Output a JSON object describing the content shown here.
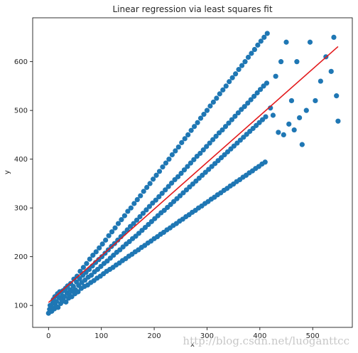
{
  "chart_data": {
    "type": "scatter",
    "title": "Linear regression via least squares fit",
    "xlabel": "x",
    "ylabel": "y",
    "xlim": [
      -30,
      575
    ],
    "ylim": [
      55,
      690
    ],
    "xticks": [
      0,
      100,
      200,
      300,
      400,
      500
    ],
    "yticks": [
      100,
      200,
      300,
      400,
      500,
      600
    ],
    "grid": false,
    "colors": {
      "points": "#1f77b4",
      "fit": "#e31a1c"
    },
    "fit_line": {
      "x": [
        0,
        548
      ],
      "y": [
        106,
        631
      ]
    },
    "series": [
      {
        "type": "scatter",
        "points": [
          [
            0,
            84
          ],
          [
            2,
            92
          ],
          [
            3,
            100
          ],
          [
            5,
            97
          ],
          [
            6,
            88
          ],
          [
            8,
            105
          ],
          [
            9,
            112
          ],
          [
            11,
            93
          ],
          [
            12,
            118
          ],
          [
            14,
            99
          ],
          [
            15,
            108
          ],
          [
            17,
            124
          ],
          [
            18,
            96
          ],
          [
            20,
            116
          ],
          [
            21,
            128
          ],
          [
            23,
            104
          ],
          [
            24,
            113
          ],
          [
            26,
            120
          ],
          [
            27,
            130
          ],
          [
            29,
            109
          ],
          [
            30,
            118
          ],
          [
            32,
            135
          ],
          [
            33,
            107
          ],
          [
            35,
            126
          ],
          [
            36,
            140
          ],
          [
            38,
            115
          ],
          [
            39,
            122
          ],
          [
            41,
            132
          ],
          [
            42,
            145
          ],
          [
            44,
            118
          ],
          [
            45,
            129
          ],
          [
            47,
            139
          ],
          [
            48,
            154
          ],
          [
            50,
            124
          ],
          [
            51,
            132
          ],
          [
            53,
            148
          ],
          [
            54,
            160
          ],
          [
            56,
            128
          ],
          [
            57,
            141
          ],
          [
            59,
            155
          ],
          [
            60,
            170
          ],
          [
            62,
            135
          ],
          [
            63,
            147
          ],
          [
            65,
            162
          ],
          [
            66,
            178
          ],
          [
            68,
            139
          ],
          [
            69,
            152
          ],
          [
            71,
            168
          ],
          [
            72,
            186
          ],
          [
            74,
            142
          ],
          [
            75,
            158
          ],
          [
            77,
            174
          ],
          [
            78,
            195
          ],
          [
            80,
            147
          ],
          [
            81,
            162
          ],
          [
            83,
            181
          ],
          [
            84,
            203
          ],
          [
            86,
            151
          ],
          [
            87,
            169
          ],
          [
            89,
            188
          ],
          [
            90,
            210
          ],
          [
            92,
            156
          ],
          [
            93,
            174
          ],
          [
            95,
            194
          ],
          [
            96,
            218
          ],
          [
            98,
            160
          ],
          [
            99,
            180
          ],
          [
            101,
            200
          ],
          [
            102,
            226
          ],
          [
            104,
            165
          ],
          [
            105,
            186
          ],
          [
            107,
            207
          ],
          [
            108,
            234
          ],
          [
            110,
            170
          ],
          [
            111,
            191
          ],
          [
            113,
            214
          ],
          [
            114,
            243
          ],
          [
            116,
            174
          ],
          [
            117,
            197
          ],
          [
            119,
            221
          ],
          [
            120,
            251
          ],
          [
            122,
            178
          ],
          [
            123,
            203
          ],
          [
            125,
            227
          ],
          [
            126,
            259
          ],
          [
            128,
            183
          ],
          [
            129,
            209
          ],
          [
            131,
            234
          ],
          [
            132,
            268
          ],
          [
            134,
            187
          ],
          [
            135,
            214
          ],
          [
            137,
            241
          ],
          [
            138,
            276
          ],
          [
            140,
            192
          ],
          [
            141,
            220
          ],
          [
            143,
            248
          ],
          [
            144,
            284
          ],
          [
            146,
            196
          ],
          [
            147,
            226
          ],
          [
            149,
            255
          ],
          [
            150,
            293
          ],
          [
            152,
            201
          ],
          [
            153,
            231
          ],
          [
            155,
            262
          ],
          [
            156,
            300
          ],
          [
            158,
            205
          ],
          [
            159,
            237
          ],
          [
            161,
            268
          ],
          [
            162,
            309
          ],
          [
            164,
            210
          ],
          [
            165,
            242
          ],
          [
            167,
            275
          ],
          [
            168,
            317
          ],
          [
            170,
            214
          ],
          [
            171,
            248
          ],
          [
            173,
            282
          ],
          [
            174,
            325
          ],
          [
            176,
            219
          ],
          [
            177,
            254
          ],
          [
            179,
            289
          ],
          [
            180,
            334
          ],
          [
            182,
            223
          ],
          [
            183,
            260
          ],
          [
            185,
            296
          ],
          [
            186,
            342
          ],
          [
            188,
            228
          ],
          [
            189,
            266
          ],
          [
            191,
            303
          ],
          [
            192,
            350
          ],
          [
            194,
            232
          ],
          [
            195,
            272
          ],
          [
            197,
            310
          ],
          [
            198,
            359
          ],
          [
            200,
            237
          ],
          [
            201,
            278
          ],
          [
            203,
            316
          ],
          [
            204,
            367
          ],
          [
            206,
            241
          ],
          [
            207,
            284
          ],
          [
            209,
            323
          ],
          [
            210,
            375
          ],
          [
            212,
            246
          ],
          [
            213,
            290
          ],
          [
            215,
            330
          ],
          [
            216,
            384
          ],
          [
            218,
            250
          ],
          [
            219,
            295
          ],
          [
            221,
            337
          ],
          [
            222,
            392
          ],
          [
            224,
            255
          ],
          [
            225,
            301
          ],
          [
            227,
            344
          ],
          [
            228,
            400
          ],
          [
            230,
            259
          ],
          [
            231,
            307
          ],
          [
            233,
            351
          ],
          [
            234,
            409
          ],
          [
            236,
            264
          ],
          [
            237,
            313
          ],
          [
            239,
            358
          ],
          [
            240,
            417
          ],
          [
            242,
            268
          ],
          [
            243,
            319
          ],
          [
            245,
            364
          ],
          [
            246,
            425
          ],
          [
            248,
            273
          ],
          [
            249,
            325
          ],
          [
            251,
            371
          ],
          [
            252,
            434
          ],
          [
            254,
            277
          ],
          [
            255,
            331
          ],
          [
            257,
            378
          ],
          [
            258,
            442
          ],
          [
            260,
            282
          ],
          [
            261,
            337
          ],
          [
            263,
            385
          ],
          [
            264,
            450
          ],
          [
            266,
            286
          ],
          [
            267,
            343
          ],
          [
            269,
            392
          ],
          [
            270,
            459
          ],
          [
            272,
            291
          ],
          [
            273,
            349
          ],
          [
            275,
            399
          ],
          [
            276,
            467
          ],
          [
            278,
            295
          ],
          [
            279,
            355
          ],
          [
            281,
            406
          ],
          [
            282,
            475
          ],
          [
            284,
            300
          ],
          [
            285,
            361
          ],
          [
            287,
            412
          ],
          [
            288,
            484
          ],
          [
            290,
            304
          ],
          [
            291,
            367
          ],
          [
            293,
            419
          ],
          [
            294,
            492
          ],
          [
            296,
            309
          ],
          [
            297,
            373
          ],
          [
            299,
            426
          ],
          [
            300,
            500
          ],
          [
            302,
            313
          ],
          [
            303,
            379
          ],
          [
            305,
            433
          ],
          [
            306,
            509
          ],
          [
            308,
            318
          ],
          [
            309,
            385
          ],
          [
            311,
            440
          ],
          [
            312,
            517
          ],
          [
            314,
            322
          ],
          [
            315,
            391
          ],
          [
            317,
            447
          ],
          [
            318,
            525
          ],
          [
            320,
            327
          ],
          [
            321,
            397
          ],
          [
            323,
            454
          ],
          [
            324,
            534
          ],
          [
            326,
            331
          ],
          [
            327,
            403
          ],
          [
            329,
            460
          ],
          [
            330,
            542
          ],
          [
            332,
            336
          ],
          [
            333,
            409
          ],
          [
            335,
            467
          ],
          [
            336,
            550
          ],
          [
            338,
            340
          ],
          [
            339,
            415
          ],
          [
            341,
            474
          ],
          [
            342,
            559
          ],
          [
            344,
            345
          ],
          [
            345,
            421
          ],
          [
            347,
            481
          ],
          [
            348,
            567
          ],
          [
            350,
            349
          ],
          [
            351,
            427
          ],
          [
            353,
            488
          ],
          [
            354,
            575
          ],
          [
            356,
            354
          ],
          [
            357,
            433
          ],
          [
            359,
            495
          ],
          [
            360,
            584
          ],
          [
            362,
            358
          ],
          [
            363,
            439
          ],
          [
            365,
            502
          ],
          [
            366,
            592
          ],
          [
            368,
            363
          ],
          [
            369,
            445
          ],
          [
            371,
            508
          ],
          [
            372,
            600
          ],
          [
            374,
            367
          ],
          [
            375,
            451
          ],
          [
            377,
            515
          ],
          [
            378,
            609
          ],
          [
            380,
            372
          ],
          [
            381,
            457
          ],
          [
            383,
            522
          ],
          [
            384,
            617
          ],
          [
            386,
            376
          ],
          [
            387,
            463
          ],
          [
            389,
            529
          ],
          [
            390,
            625
          ],
          [
            392,
            381
          ],
          [
            393,
            469
          ],
          [
            395,
            536
          ],
          [
            396,
            634
          ],
          [
            398,
            385
          ],
          [
            399,
            475
          ],
          [
            401,
            543
          ],
          [
            402,
            642
          ],
          [
            404,
            390
          ],
          [
            405,
            481
          ],
          [
            407,
            550
          ],
          [
            408,
            650
          ],
          [
            410,
            394
          ],
          [
            411,
            487
          ],
          [
            413,
            556
          ],
          [
            414,
            658
          ],
          [
            420,
            505
          ],
          [
            425,
            490
          ],
          [
            430,
            570
          ],
          [
            435,
            455
          ],
          [
            440,
            600
          ],
          [
            445,
            450
          ],
          [
            450,
            640
          ],
          [
            455,
            472
          ],
          [
            460,
            520
          ],
          [
            465,
            460
          ],
          [
            470,
            600
          ],
          [
            475,
            485
          ],
          [
            480,
            430
          ],
          [
            488,
            500
          ],
          [
            495,
            640
          ],
          [
            505,
            520
          ],
          [
            515,
            560
          ],
          [
            525,
            610
          ],
          [
            535,
            580
          ],
          [
            540,
            650
          ],
          [
            545,
            530
          ],
          [
            548,
            478
          ]
        ]
      }
    ]
  },
  "watermark": "http://blog.csdn.net/luoganttcc"
}
